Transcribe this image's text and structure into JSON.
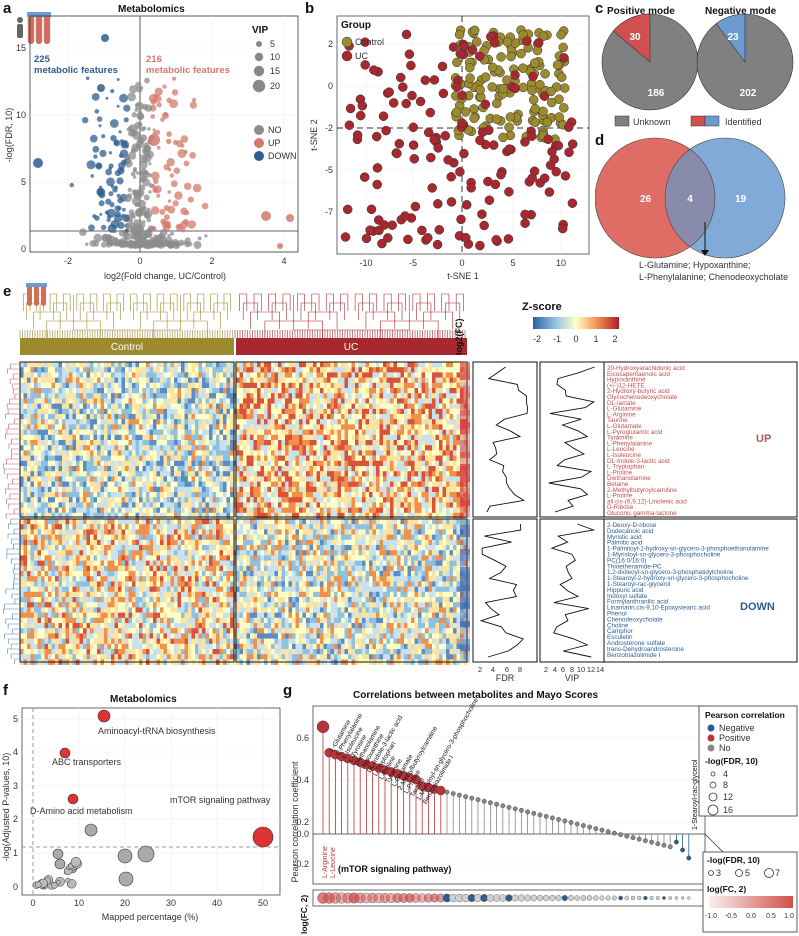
{
  "panel_labels": {
    "a": "a",
    "b": "b",
    "c": "c",
    "d": "d",
    "e": "e",
    "f": "f",
    "g": "g"
  },
  "panel_a": {
    "title": "Metabolomics",
    "ylabel": "-log(FDR, 10)",
    "xlabel": "log2(Fold change, UC/Control)",
    "down_count": "225",
    "down_text": "metabolic features",
    "up_count": "216",
    "up_text": "metabolic features",
    "vip_title": "VIP",
    "vip_sizes": [
      "5",
      "10",
      "15",
      "20"
    ],
    "status_legend": [
      "NO",
      "UP",
      "DOWN"
    ],
    "colors": {
      "no": "#8c8c8c",
      "up": "#d4796b",
      "down": "#2f5d92"
    }
  },
  "panel_b": {
    "legend_title": "Group",
    "groups": [
      "Control",
      "UC"
    ],
    "xlabel": "t-SNE 1",
    "ylabel": "t-SNE 2",
    "colors": {
      "control": "#9c8a2e",
      "uc": "#a7282e"
    }
  },
  "panel_c": {
    "positive_title": "Positive mode",
    "negative_title": "Negative mode",
    "positive_identified": "30",
    "positive_unknown": "186",
    "negative_identified": "23",
    "negative_unknown": "202",
    "legend_unknown": "Unknown",
    "legend_identified": "Identified"
  },
  "panel_d": {
    "left_only": "26",
    "overlap": "4",
    "right_only": "19",
    "overlap_metabolites_line1": "L-Glutamine; Hypoxanthine;",
    "overlap_metabolites_line2": "L-Phenylalanine; Chenodeoxycholate"
  },
  "panel_e": {
    "group_control": "Control",
    "group_uc": "UC",
    "fc_label": "log2(FC)",
    "zscore_title": "Z-score",
    "zscore_ticks": [
      "-2",
      "-1",
      "0",
      "1",
      "2"
    ],
    "fdr_label": "FDR",
    "vip_label": "VIP",
    "fdr_ticks": [
      "2",
      "4",
      "6",
      "8"
    ],
    "vip_ticks": [
      "2",
      "4",
      "6",
      "8",
      "10",
      "12",
      "14"
    ],
    "up_label": "UP",
    "down_label": "DOWN",
    "up_metabolites": [
      "20-Hydroxyarachidonic acid",
      "Eicosapentaenoic acid",
      "Hypoxanthine",
      "(+/-)12-HETE",
      "2-Hydroxy-butyric acid",
      "Glycochenodeoxycholate",
      "DL-lactate",
      "L-Glutamine",
      "L-Arginine",
      "Taurine",
      "L-Glutamate",
      "L-Pyroglutamic acid",
      "Tyramine",
      "L-Phenylalanine",
      "L-Leucine",
      "L-Isoleucine",
      "DL-Indole-3-lactic acid",
      "L-Tryptophan",
      "L-Proline",
      "Diethanolamine",
      "Betaine",
      "2-Methylbutyroylcarnitine",
      "L-Proline",
      "all cis-(6,9,12)-Linolenic acid",
      "D-Ribose",
      "Gluconic gamma-lactone"
    ],
    "down_metabolites": [
      "2-Deoxy-D-ribose",
      "Dodecanoic acid",
      "Myristic acid",
      "Palmitic acid",
      "1-Palmitoyl-2-hydroxy-sn-glycero-3-phosphoethanolamine",
      "1-Myristoyl-sn-glycero-3-phosphocholine",
      "PC(16:0/16:0)",
      "Thioetheramide-PC",
      "1,2-dioleoyl-sn-glycero-3-phosphatidylcholine",
      "1-Stearoyl-2-hydroxy-sn-glycero-3-phosphocholine",
      "1-Stearoyl-rac-glycerol",
      "Hippuric acid",
      "Indoxyl sulfate",
      "Formylanthranilic acid",
      "Linamarin,cis-9,10-Epoxystearic acid",
      "Phenol",
      "Chenodeoxycholate",
      "Choline",
      "Camphor",
      "Esculetin",
      "Androsterone sulfate",
      "trans-Dehydroandrosterone",
      "Benzotriazolimide I"
    ]
  },
  "panel_f": {
    "title": "Metabolomics",
    "xlabel": "Mapped percentage (%)",
    "ylabel": "-log(Adjusted P-values, 10)",
    "x_ticks": [
      "0",
      "10",
      "20",
      "30",
      "40",
      "50"
    ],
    "y_ticks": [
      "0",
      "1",
      "2",
      "3",
      "4",
      "5"
    ],
    "labels": [
      "Aminoacyl-tRNA biosynthesis",
      "ABC transporters",
      "D-Amino acid metabolism",
      "mTOR signaling pathway"
    ]
  },
  "panel_g": {
    "title": "Correlations between metabolites and Mayo Scores",
    "ylabel": "Pearson correlation coefficient",
    "y_ticks": [
      "0.6",
      "0.4",
      "0.2",
      "0.0",
      "-0.2"
    ],
    "row2_label": "log(FC, 2)",
    "annotation": "(mTOR signaling pathway)",
    "neg_labels": [
      "L-Arginine",
      "L-Leucine"
    ],
    "top_labels": [
      "L-Glutamine",
      "L-Phenylalanine",
      "L-Isoleucine",
      "L-Tyrosine",
      "Diethanolamine",
      "Hypoxanthine",
      "DL-Indole-3-lactic acid",
      "L-Tryptophan",
      "L-Proline",
      "Tyramine",
      "L-Glutamate",
      "2-Methylbutyroylcarnitine",
      "L-Proline",
      "Taurine",
      "1-Myristoyl-sn-glycero-3-phosphocholine",
      "Benzotriazolimide I"
    ],
    "right_label": "1-Stearoyl-rac-glycerol",
    "legend": {
      "pearson_title": "Pearson correlation",
      "categories": [
        "Negative",
        "Positive",
        "No"
      ],
      "fdr_title": "-log(FDR, 10)",
      "fdr_sizes": [
        "4",
        "8",
        "12",
        "16"
      ],
      "fdr2_title": "-log(FDR, 10)",
      "fdr2_sizes": [
        "3",
        "5",
        "7"
      ],
      "fc_title": "log(FC, 2)",
      "fc_ticks": [
        "-1.0",
        "-0.5",
        "0.0",
        "0.5",
        "1.0"
      ]
    },
    "colors": {
      "negative": "#2c5d91",
      "positive": "#b8333a",
      "no": "#888888"
    }
  }
}
